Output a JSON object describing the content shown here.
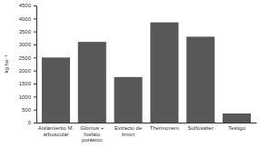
{
  "chart_data": {
    "type": "bar",
    "y_label": "kg ha⁻¹",
    "categories": [
      "Aislamiento M.\narbuscular",
      "Glomus +\nfosfato\npotásico",
      "Extracto de\nlimón",
      "Thermonem",
      "Sulfosalter",
      "Testigo"
    ],
    "values": [
      2500,
      3100,
      1750,
      3850,
      3300,
      350
    ],
    "color": "#585858",
    "ylim": [
      0,
      4500
    ],
    "yticks": [
      0,
      500,
      1000,
      1500,
      2000,
      2500,
      3000,
      3500,
      4000,
      4500
    ],
    "grid": false
  }
}
